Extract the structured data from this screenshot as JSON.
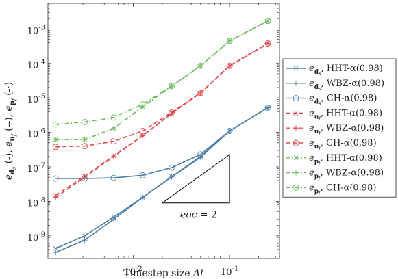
{
  "chart_data": {
    "type": "line",
    "title": "",
    "xlabel": "Timestep size Δt",
    "ylabel": "e_{d_s} (-), e_{u_f} (--), e_{p_f} (-·)",
    "xscale": "log",
    "yscale": "log",
    "xlim": [
      0.0013,
      0.33
    ],
    "ylim": [
      2.2e-10,
      0.0055
    ],
    "grid": false,
    "legend_position": "right",
    "x": [
      0.0015625,
      0.003125,
      0.00625,
      0.0125,
      0.025,
      0.05,
      0.1,
      0.25
    ],
    "x_tick_labels": [
      {
        "base": "10",
        "exp": "-2",
        "value": 0.01
      },
      {
        "base": "10",
        "exp": "-1",
        "value": 0.1
      }
    ],
    "y_tick_labels": [
      {
        "base": "10",
        "exp": "-9",
        "value": 1e-09
      },
      {
        "base": "10",
        "exp": "-8",
        "value": 1e-08
      },
      {
        "base": "10",
        "exp": "-7",
        "value": 1e-07
      },
      {
        "base": "10",
        "exp": "-6",
        "value": 1e-06
      },
      {
        "base": "10",
        "exp": "-5",
        "value": 1e-05
      },
      {
        "base": "10",
        "exp": "-4",
        "value": 0.0001
      },
      {
        "base": "10",
        "exp": "-3",
        "value": 0.001
      }
    ],
    "series": [
      {
        "name": "e_{d_s}, HHT-α(0.98)",
        "color": "#4a7ea8",
        "dash": "solid",
        "marker": "x",
        "values": [
          4.3e-10,
          1e-09,
          3.5e-09,
          1.3e-08,
          5.2e-08,
          2e-07,
          1.1e-06,
          5.2e-06
        ]
      },
      {
        "name": "e_{d_s}, WBZ-α(0.98)",
        "color": "#4a7ea8",
        "dash": "solid",
        "marker": "plus",
        "values": [
          3.3e-10,
          7.5e-10,
          3e-09,
          1.3e-08,
          5.1e-08,
          1.9e-07,
          1.1e-06,
          5.2e-06
        ]
      },
      {
        "name": "e_{d_s}, CH-α(0.98)",
        "color": "#4a7ea8",
        "dash": "solid",
        "marker": "circle",
        "values": [
          4.6e-08,
          4.6e-08,
          4.8e-08,
          5.7e-08,
          9.5e-08,
          2.3e-07,
          1.1e-06,
          5.2e-06
        ]
      },
      {
        "name": "e_{u_f}, HHT-α(0.98)",
        "color": "#e0474c",
        "dash": "dashed",
        "marker": "x",
        "values": [
          1.5e-08,
          5.3e-08,
          2.1e-07,
          8e-07,
          3.6e-06,
          1.4e-05,
          8.5e-05,
          0.00038
        ]
      },
      {
        "name": "e_{u_f}, WBZ-α(0.98)",
        "color": "#e0474c",
        "dash": "dashed",
        "marker": "plus",
        "values": [
          1.3e-08,
          5e-08,
          2e-07,
          8e-07,
          3.5e-06,
          1.4e-05,
          8.5e-05,
          0.00038
        ]
      },
      {
        "name": "e_{u_f}, CH-α(0.98)",
        "color": "#e0474c",
        "dash": "dashed",
        "marker": "circle",
        "values": [
          3.8e-07,
          4e-07,
          5.5e-07,
          1.1e-06,
          3.8e-06,
          1.4e-05,
          8.5e-05,
          0.00038
        ]
      },
      {
        "name": "e_{p_f}, HHT-α(0.98)",
        "color": "#6dbb5c",
        "dash": "dashdot",
        "marker": "x",
        "values": [
          6.2e-07,
          6.2e-07,
          1.3e-06,
          5.5e-06,
          2.2e-05,
          8.5e-05,
          0.00045,
          0.0017
        ]
      },
      {
        "name": "e_{p_f}, WBZ-α(0.98)",
        "color": "#6dbb5c",
        "dash": "dashdot",
        "marker": "plus",
        "values": [
          6.2e-07,
          6.2e-07,
          1.3e-06,
          5.5e-06,
          2.2e-05,
          8.5e-05,
          0.00045,
          0.0017
        ]
      },
      {
        "name": "e_{p_f}, CH-α(0.98)",
        "color": "#6dbb5c",
        "dash": "dashdot",
        "marker": "circle",
        "values": [
          1.7e-06,
          2e-06,
          2.7e-06,
          6.5e-06,
          2.2e-05,
          8.5e-05,
          0.00045,
          0.0017
        ]
      }
    ],
    "legend_entries": [
      {
        "sym": "e",
        "sub": "d",
        "subsub": "s",
        "method": ", HHT-α(0.98)"
      },
      {
        "sym": "e",
        "sub": "d",
        "subsub": "s",
        "method": ", WBZ-α(0.98)"
      },
      {
        "sym": "e",
        "sub": "d",
        "subsub": "s",
        "method": ", CH-α(0.98)"
      },
      {
        "sym": "e",
        "sub": "u",
        "subsub": "f",
        "method": ", HHT-α(0.98)"
      },
      {
        "sym": "e",
        "sub": "u",
        "subsub": "f",
        "method": ", WBZ-α(0.98)"
      },
      {
        "sym": "e",
        "sub": "u",
        "subsub": "f",
        "method": ", CH-α(0.98)"
      },
      {
        "sym": "e",
        "sub": "p",
        "subsub": "f",
        "method": ", HHT-α(0.98)"
      },
      {
        "sym": "e",
        "sub": "p",
        "subsub": "f",
        "method": ", WBZ-α(0.98)"
      },
      {
        "sym": "e",
        "sub": "p",
        "subsub": "f",
        "method": ", CH-α(0.98)"
      }
    ],
    "ylabel_parts": [
      {
        "sym": "e",
        "sub": "d",
        "subsub": "s",
        "after": " (-), "
      },
      {
        "sym": "e",
        "sub": "u",
        "subsub": "f",
        "after": " (--), "
      },
      {
        "sym": "e",
        "sub": "p",
        "subsub": "f",
        "after": " (-·)"
      }
    ],
    "xlabel_parts": {
      "text": "Timestep size ",
      "sym": "Δt"
    },
    "annotations": [
      {
        "text": "eoc = 2",
        "label_parts": {
          "sym": "eoc",
          "rest": " = 2"
        },
        "triangle": {
          "x_left": 0.02,
          "x_right": 0.1,
          "y_bottom": 9e-09,
          "slope": 2
        }
      }
    ]
  }
}
